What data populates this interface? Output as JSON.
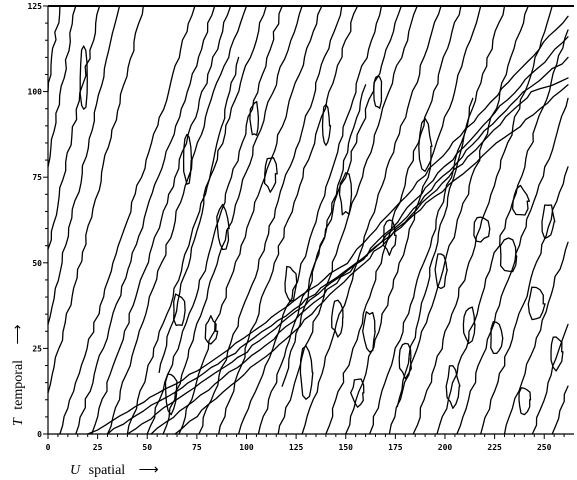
{
  "chart_data": {
    "type": "contour",
    "title": "",
    "xlabel": {
      "var": "U",
      "text": "spatial",
      "arrow": "⟶"
    },
    "ylabel": {
      "var": "T",
      "text": "temporal",
      "arrow": "⟶"
    },
    "xlim": [
      0,
      265
    ],
    "ylim": [
      0,
      125
    ],
    "xticks": [
      "0",
      "25",
      "50",
      "75",
      "100",
      "125",
      "150",
      "175",
      "200",
      "225",
      "250"
    ],
    "yticks": [
      "0",
      "25",
      "50",
      "75",
      "100",
      "125"
    ],
    "grid": false,
    "line_color": "#000000",
    "contours": [
      {
        "kind": "stripe",
        "points": [
          [
            6,
            0
          ],
          [
            74,
            125
          ]
        ]
      },
      {
        "kind": "stripe",
        "points": [
          [
            14,
            0
          ],
          [
            46,
            58
          ],
          [
            70,
            100
          ],
          [
            84,
            125
          ]
        ]
      },
      {
        "kind": "stripe",
        "points": [
          [
            22,
            0
          ],
          [
            92,
            125
          ]
        ]
      },
      {
        "kind": "stripe",
        "points": [
          [
            30,
            0
          ],
          [
            60,
            55
          ],
          [
            84,
            100
          ],
          [
            100,
            125
          ]
        ]
      },
      {
        "kind": "stripe",
        "points": [
          [
            40,
            0
          ],
          [
            110,
            125
          ]
        ]
      },
      {
        "kind": "stripe",
        "points": [
          [
            50,
            0
          ],
          [
            80,
            50
          ],
          [
            118,
            125
          ]
        ]
      },
      {
        "kind": "stripe",
        "points": [
          [
            58,
            0
          ],
          [
            104,
            84
          ],
          [
            128,
            125
          ]
        ]
      },
      {
        "kind": "stripe",
        "points": [
          [
            66,
            0
          ],
          [
            138,
            125
          ]
        ]
      },
      {
        "kind": "stripe",
        "points": [
          [
            76,
            0
          ],
          [
            104,
            46
          ],
          [
            148,
            125
          ]
        ]
      },
      {
        "kind": "stripe",
        "points": [
          [
            86,
            0
          ],
          [
            156,
            125
          ]
        ]
      },
      {
        "kind": "stripe",
        "points": [
          [
            96,
            0
          ],
          [
            124,
            42
          ],
          [
            168,
            125
          ]
        ]
      },
      {
        "kind": "stripe",
        "points": [
          [
            106,
            0
          ],
          [
            178,
            125
          ]
        ]
      },
      {
        "kind": "stripe",
        "points": [
          [
            116,
            0
          ],
          [
            186,
            125
          ]
        ]
      },
      {
        "kind": "stripe",
        "points": [
          [
            128,
            0
          ],
          [
            150,
            40
          ],
          [
            198,
            125
          ]
        ]
      },
      {
        "kind": "stripe",
        "points": [
          [
            140,
            0
          ],
          [
            208,
            125
          ]
        ]
      },
      {
        "kind": "stripe",
        "points": [
          [
            150,
            0
          ],
          [
            218,
            125
          ]
        ]
      },
      {
        "kind": "stripe",
        "points": [
          [
            162,
            0
          ],
          [
            230,
            125
          ]
        ]
      },
      {
        "kind": "stripe",
        "points": [
          [
            172,
            0
          ],
          [
            242,
            125
          ]
        ]
      },
      {
        "kind": "stripe",
        "points": [
          [
            184,
            0
          ],
          [
            254,
            125
          ]
        ]
      },
      {
        "kind": "stripe",
        "points": [
          [
            196,
            0
          ],
          [
            262,
            118
          ]
        ]
      },
      {
        "kind": "stripe",
        "points": [
          [
            206,
            0
          ],
          [
            262,
            98
          ]
        ]
      },
      {
        "kind": "stripe",
        "points": [
          [
            218,
            0
          ],
          [
            262,
            78
          ]
        ]
      },
      {
        "kind": "stripe",
        "points": [
          [
            230,
            0
          ],
          [
            262,
            56
          ]
        ]
      },
      {
        "kind": "stripe",
        "points": [
          [
            244,
            0
          ],
          [
            262,
            32
          ]
        ]
      },
      {
        "kind": "stripe",
        "points": [
          [
            254,
            0
          ],
          [
            262,
            14
          ]
        ]
      },
      {
        "kind": "stripe",
        "points": [
          [
            0,
            12
          ],
          [
            48,
            125
          ]
        ]
      },
      {
        "kind": "stripe",
        "points": [
          [
            0,
            32
          ],
          [
            36,
            125
          ]
        ]
      },
      {
        "kind": "stripe",
        "points": [
          [
            0,
            54
          ],
          [
            26,
            125
          ]
        ]
      },
      {
        "kind": "stripe",
        "points": [
          [
            0,
            78
          ],
          [
            14,
            125
          ]
        ]
      },
      {
        "kind": "stripe",
        "points": [
          [
            0,
            100
          ],
          [
            6,
            125
          ]
        ]
      },
      {
        "kind": "stripe",
        "points": [
          [
            56,
            18
          ],
          [
            76,
            62
          ],
          [
            96,
            110
          ]
        ]
      },
      {
        "kind": "stripe",
        "points": [
          [
            118,
            14
          ],
          [
            140,
            60
          ],
          [
            160,
            102
          ]
        ]
      },
      {
        "kind": "stripe",
        "points": [
          [
            176,
            8
          ],
          [
            196,
            56
          ],
          [
            214,
            98
          ]
        ]
      },
      {
        "kind": "diagonal",
        "points": [
          [
            20,
            0
          ],
          [
            80,
            20
          ],
          [
            150,
            50
          ],
          [
            220,
            95
          ],
          [
            262,
            122
          ]
        ]
      },
      {
        "kind": "diagonal",
        "points": [
          [
            30,
            0
          ],
          [
            90,
            22
          ],
          [
            160,
            52
          ],
          [
            228,
            96
          ],
          [
            262,
            116
          ]
        ]
      },
      {
        "kind": "diagonal",
        "points": [
          [
            40,
            0
          ],
          [
            100,
            24
          ],
          [
            168,
            56
          ],
          [
            236,
            98
          ],
          [
            262,
            110
          ]
        ]
      },
      {
        "kind": "diagonal",
        "points": [
          [
            52,
            0
          ],
          [
            110,
            26
          ],
          [
            176,
            60
          ],
          [
            244,
            100
          ],
          [
            262,
            104
          ]
        ]
      },
      {
        "kind": "diagonal",
        "points": [
          [
            64,
            0
          ],
          [
            120,
            28
          ],
          [
            184,
            64
          ],
          [
            262,
            102
          ]
        ]
      },
      {
        "kind": "blob",
        "center": [
          18,
          104
        ],
        "size": [
          2,
          9
        ]
      },
      {
        "kind": "blob",
        "center": [
          62,
          12
        ],
        "size": [
          3,
          6
        ]
      },
      {
        "kind": "blob",
        "center": [
          66,
          36
        ],
        "size": [
          3,
          5
        ]
      },
      {
        "kind": "blob",
        "center": [
          70,
          80
        ],
        "size": [
          2,
          7
        ]
      },
      {
        "kind": "blob",
        "center": [
          82,
          30
        ],
        "size": [
          3,
          4
        ]
      },
      {
        "kind": "blob",
        "center": [
          88,
          60
        ],
        "size": [
          3,
          6
        ]
      },
      {
        "kind": "blob",
        "center": [
          104,
          92
        ],
        "size": [
          2,
          5
        ]
      },
      {
        "kind": "blob",
        "center": [
          112,
          76
        ],
        "size": [
          3,
          5
        ]
      },
      {
        "kind": "blob",
        "center": [
          122,
          44
        ],
        "size": [
          3,
          5
        ]
      },
      {
        "kind": "blob",
        "center": [
          130,
          18
        ],
        "size": [
          3,
          7
        ]
      },
      {
        "kind": "blob",
        "center": [
          140,
          90
        ],
        "size": [
          2,
          6
        ]
      },
      {
        "kind": "blob",
        "center": [
          146,
          34
        ],
        "size": [
          3,
          5
        ]
      },
      {
        "kind": "blob",
        "center": [
          150,
          70
        ],
        "size": [
          3,
          6
        ]
      },
      {
        "kind": "blob",
        "center": [
          156,
          12
        ],
        "size": [
          3,
          4
        ]
      },
      {
        "kind": "blob",
        "center": [
          162,
          30
        ],
        "size": [
          3,
          6
        ]
      },
      {
        "kind": "blob",
        "center": [
          166,
          100
        ],
        "size": [
          2,
          5
        ]
      },
      {
        "kind": "blob",
        "center": [
          172,
          58
        ],
        "size": [
          3,
          5
        ]
      },
      {
        "kind": "blob",
        "center": [
          180,
          22
        ],
        "size": [
          3,
          5
        ]
      },
      {
        "kind": "blob",
        "center": [
          190,
          84
        ],
        "size": [
          3,
          7
        ]
      },
      {
        "kind": "blob",
        "center": [
          198,
          48
        ],
        "size": [
          3,
          5
        ]
      },
      {
        "kind": "blob",
        "center": [
          204,
          14
        ],
        "size": [
          3,
          6
        ]
      },
      {
        "kind": "blob",
        "center": [
          212,
          32
        ],
        "size": [
          3,
          5
        ]
      },
      {
        "kind": "blob",
        "center": [
          218,
          60
        ],
        "size": [
          4,
          4
        ]
      },
      {
        "kind": "blob",
        "center": [
          226,
          28
        ],
        "size": [
          3,
          5
        ]
      },
      {
        "kind": "blob",
        "center": [
          232,
          52
        ],
        "size": [
          4,
          5
        ]
      },
      {
        "kind": "blob",
        "center": [
          238,
          68
        ],
        "size": [
          4,
          4
        ]
      },
      {
        "kind": "blob",
        "center": [
          240,
          10
        ],
        "size": [
          3,
          4
        ]
      },
      {
        "kind": "blob",
        "center": [
          246,
          38
        ],
        "size": [
          4,
          5
        ]
      },
      {
        "kind": "blob",
        "center": [
          252,
          62
        ],
        "size": [
          3,
          5
        ]
      },
      {
        "kind": "blob",
        "center": [
          256,
          24
        ],
        "size": [
          3,
          5
        ]
      }
    ]
  }
}
